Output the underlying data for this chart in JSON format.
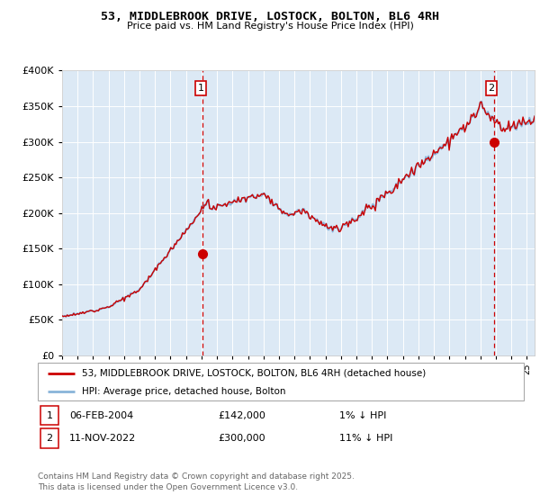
{
  "title": "53, MIDDLEBROOK DRIVE, LOSTOCK, BOLTON, BL6 4RH",
  "subtitle": "Price paid vs. HM Land Registry's House Price Index (HPI)",
  "plot_bg_color": "#dce9f5",
  "line_color_hpi": "#89b4d9",
  "line_color_price": "#cc0000",
  "marker_color": "#cc0000",
  "dashed_line_color": "#cc0000",
  "ylim": [
    0,
    400000
  ],
  "yticks": [
    0,
    50000,
    100000,
    150000,
    200000,
    250000,
    300000,
    350000,
    400000
  ],
  "purchase1_date": 2004.09,
  "purchase1_value": 142000,
  "purchase2_date": 2022.86,
  "purchase2_value": 300000,
  "legend_line1": "53, MIDDLEBROOK DRIVE, LOSTOCK, BOLTON, BL6 4RH (detached house)",
  "legend_line2": "HPI: Average price, detached house, Bolton",
  "copyright": "Contains HM Land Registry data © Crown copyright and database right 2025.\nThis data is licensed under the Open Government Licence v3.0.",
  "xmin": 1995.0,
  "xmax": 2025.5
}
